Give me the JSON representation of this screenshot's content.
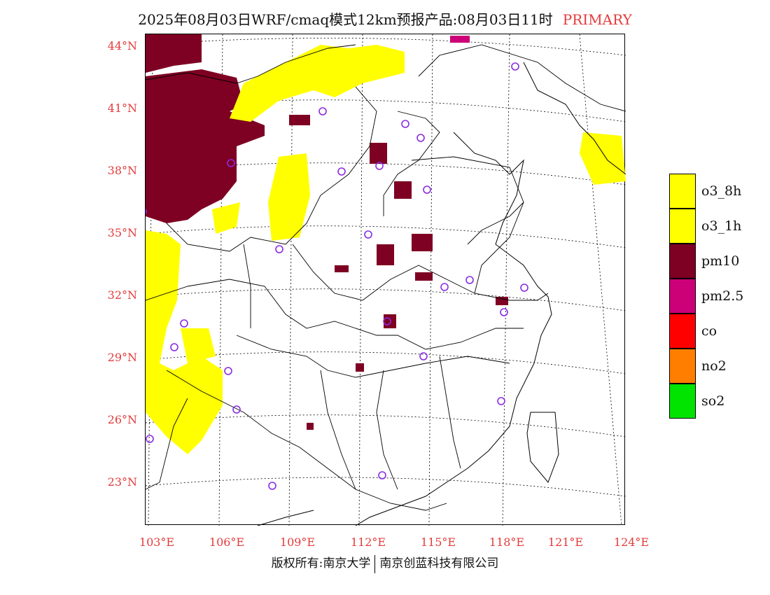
{
  "header": {
    "title": "2025年08月03日WRF/cmaq模式12km预报产品:08月03日11时",
    "tag": "PRIMARY",
    "tag_color": "#e43b3b"
  },
  "axes": {
    "lat_labels": [
      "44°N",
      "41°N",
      "38°N",
      "35°N",
      "32°N",
      "29°N",
      "26°N",
      "23°N"
    ],
    "lon_labels": [
      "103°E",
      "106°E",
      "109°E",
      "112°E",
      "115°E",
      "118°E",
      "121°E",
      "124°E"
    ]
  },
  "legend": [
    {
      "label": "o3_8h",
      "color": "#ffff00"
    },
    {
      "label": "o3_1h",
      "color": "#ffff00"
    },
    {
      "label": "pm10",
      "color": "#7e0023"
    },
    {
      "label": "pm2.5",
      "color": "#cc0077"
    },
    {
      "label": "co",
      "color": "#ff0000"
    },
    {
      "label": "no2",
      "color": "#ff7e00"
    },
    {
      "label": "so2",
      "color": "#00e400"
    }
  ],
  "footer": {
    "left": "版权所有:南京大学",
    "right": "南京创蓝科技有限公司"
  },
  "icons": {
    "station_marker": "circle-marker-icon"
  }
}
